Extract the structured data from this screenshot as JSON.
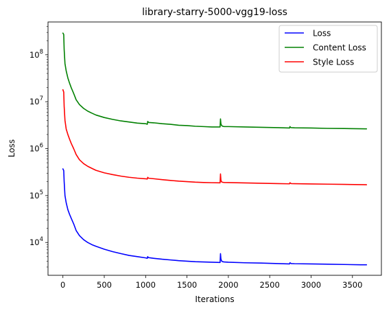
{
  "chart_data": {
    "type": "line",
    "title": "library-starry-5000-vgg19-loss",
    "xlabel": "Iterations",
    "ylabel": "Loss",
    "xlim": [
      -180,
      3850
    ],
    "ylim": [
      2000,
      500000000
    ],
    "yscale": "log",
    "grid": false,
    "legend_position": "top-right",
    "x_ticks": [
      {
        "value": 0,
        "label": "0"
      },
      {
        "value": 500,
        "label": "500"
      },
      {
        "value": 1000,
        "label": "1000"
      },
      {
        "value": 1500,
        "label": "1500"
      },
      {
        "value": 2000,
        "label": "2000"
      },
      {
        "value": 2500,
        "label": "2500"
      },
      {
        "value": 3000,
        "label": "3000"
      },
      {
        "value": 3500,
        "label": "3500"
      }
    ],
    "y_ticks": [
      {
        "value": 10000,
        "base": "10",
        "exp": "4"
      },
      {
        "value": 100000,
        "base": "10",
        "exp": "5"
      },
      {
        "value": 1000000,
        "base": "10",
        "exp": "6"
      },
      {
        "value": 10000000,
        "base": "10",
        "exp": "7"
      },
      {
        "value": 100000000,
        "base": "10",
        "exp": "8"
      }
    ],
    "series": [
      {
        "name": "Loss",
        "color": "#0000ff",
        "x": [
          0,
          10,
          15,
          25,
          40,
          60,
          80,
          100,
          130,
          160,
          200,
          250,
          300,
          350,
          400,
          500,
          600,
          700,
          800,
          900,
          1000,
          1020,
          1025,
          1030,
          1040,
          1100,
          1200,
          1300,
          1400,
          1500,
          1600,
          1700,
          1800,
          1900,
          1905,
          1910,
          1915,
          1920,
          1930,
          1950,
          2000,
          2200,
          2400,
          2600,
          2740,
          2745,
          2750,
          2760,
          2800,
          3000,
          3200,
          3400,
          3600,
          3670
        ],
        "values": [
          370000,
          340000,
          200000,
          100000,
          70000,
          50000,
          40000,
          33000,
          25000,
          18000,
          14000,
          11500,
          10000,
          9000,
          8300,
          7200,
          6400,
          5800,
          5300,
          5000,
          4700,
          4600,
          5000,
          4800,
          4750,
          4600,
          4400,
          4250,
          4100,
          4000,
          3900,
          3850,
          3800,
          3750,
          5800,
          4500,
          4200,
          4000,
          3900,
          3850,
          3800,
          3700,
          3650,
          3550,
          3500,
          3700,
          3650,
          3550,
          3530,
          3500,
          3450,
          3400,
          3350,
          3350
        ]
      },
      {
        "name": "Content Loss",
        "color": "#008000",
        "x": [
          0,
          10,
          15,
          25,
          40,
          60,
          80,
          100,
          130,
          160,
          200,
          250,
          300,
          350,
          400,
          500,
          600,
          700,
          800,
          900,
          1000,
          1020,
          1025,
          1030,
          1040,
          1100,
          1200,
          1300,
          1400,
          1500,
          1600,
          1700,
          1800,
          1900,
          1905,
          1910,
          1915,
          1920,
          1930,
          1950,
          2000,
          2200,
          2400,
          2600,
          2740,
          2745,
          2750,
          2760,
          2800,
          3000,
          3200,
          3400,
          3600,
          3670
        ],
        "values": [
          290000000,
          270000000,
          130000000,
          65000000,
          45000000,
          32000000,
          25000000,
          20000000,
          15000000,
          11000000,
          8700000,
          7200000,
          6300000,
          5700000,
          5200000,
          4600000,
          4200000,
          3900000,
          3700000,
          3500000,
          3400000,
          3300000,
          3800000,
          3700000,
          3600000,
          3550000,
          3400000,
          3300000,
          3150000,
          3100000,
          3000000,
          2950000,
          2900000,
          2900000,
          4300000,
          3400000,
          3200000,
          3100000,
          3000000,
          2950000,
          2950000,
          2900000,
          2850000,
          2800000,
          2750000,
          2950000,
          2850000,
          2800000,
          2780000,
          2750000,
          2700000,
          2680000,
          2650000,
          2640000
        ]
      },
      {
        "name": "Style Loss",
        "color": "#ff0000",
        "x": [
          0,
          10,
          15,
          25,
          40,
          60,
          80,
          100,
          130,
          160,
          200,
          250,
          300,
          350,
          400,
          500,
          600,
          700,
          800,
          900,
          1000,
          1020,
          1025,
          1030,
          1040,
          1100,
          1200,
          1300,
          1400,
          1500,
          1600,
          1700,
          1800,
          1900,
          1905,
          1910,
          1915,
          1920,
          1930,
          1950,
          2000,
          2200,
          2400,
          2600,
          2740,
          2745,
          2750,
          2760,
          2800,
          3000,
          3200,
          3400,
          3600,
          3670
        ],
        "values": [
          18000000,
          16000000,
          8000000,
          4000000,
          2600000,
          2000000,
          1600000,
          1300000,
          1000000,
          750000,
          580000,
          480000,
          420000,
          380000,
          345000,
          305000,
          280000,
          260000,
          245000,
          235000,
          228000,
          225000,
          245000,
          238000,
          234000,
          228000,
          218000,
          210000,
          203000,
          198000,
          193000,
          190000,
          188000,
          187000,
          290000,
          215000,
          200000,
          195000,
          192000,
          190000,
          189000,
          186000,
          183000,
          180000,
          178000,
          188000,
          183000,
          180000,
          179000,
          177000,
          175000,
          173000,
          171000,
          170000
        ]
      }
    ]
  }
}
